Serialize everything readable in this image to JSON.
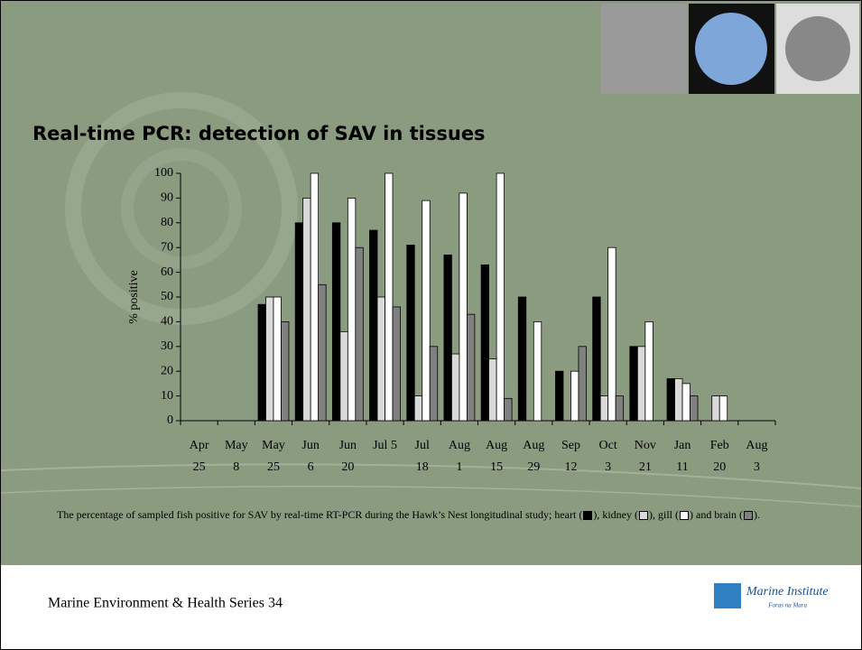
{
  "chart_data": {
    "type": "bar",
    "title": "Real-time PCR: detection of SAV in tissues",
    "ylabel": "% positive",
    "categories": [
      [
        "Apr",
        "25"
      ],
      [
        "May",
        "8"
      ],
      [
        "May",
        "25"
      ],
      [
        "Jun",
        "6"
      ],
      [
        "Jun",
        "20"
      ],
      [
        "Jul 5"
      ],
      [
        "Jul",
        "18"
      ],
      [
        "Aug",
        "1"
      ],
      [
        "Aug",
        "15"
      ],
      [
        "Aug",
        "29"
      ],
      [
        "Sep",
        "12"
      ],
      [
        "Oct",
        "3"
      ],
      [
        "Nov",
        "21"
      ],
      [
        "Jan",
        "11"
      ],
      [
        "Feb",
        "20"
      ],
      [
        "Aug",
        "3"
      ]
    ],
    "series": [
      {
        "name": "heart",
        "color": "#000000",
        "values": [
          0,
          0,
          47,
          80,
          80,
          77,
          71,
          67,
          63,
          50,
          20,
          50,
          30,
          17,
          0,
          0
        ]
      },
      {
        "name": "kidney",
        "color": "#d9d9d9",
        "values": [
          0,
          0,
          50,
          90,
          36,
          50,
          10,
          27,
          25,
          0,
          0,
          10,
          30,
          17,
          10,
          0
        ]
      },
      {
        "name": "gill",
        "color": "#ffffff",
        "values": [
          0,
          0,
          50,
          100,
          90,
          100,
          89,
          92,
          100,
          40,
          20,
          70,
          40,
          15,
          10,
          0
        ]
      },
      {
        "name": "brain",
        "color": "#808080",
        "values": [
          0,
          0,
          40,
          55,
          70,
          46,
          30,
          43,
          9,
          0,
          30,
          10,
          0,
          10,
          0,
          0
        ]
      }
    ],
    "ylim": [
      0,
      100
    ],
    "yticks": [
      0,
      10,
      20,
      30,
      40,
      50,
      60,
      70,
      80,
      90,
      100
    ],
    "caption": [
      "The percentage of sampled fish positive for SAV by real-time RT-PCR during the Hawk’s Nest longitudinal study; ",
      " (",
      "), ",
      " (",
      "), ",
      " (",
      ") and ",
      " (",
      ")."
    ]
  },
  "footer": {
    "text": "Marine Environment & Health Series 34",
    "logo": "Marine Institute",
    "logo_sub": "Foras na Mara"
  }
}
